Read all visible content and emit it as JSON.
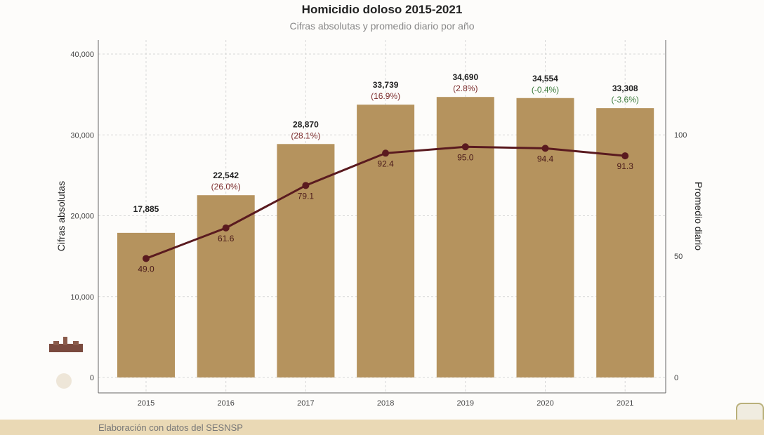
{
  "chart_data": {
    "type": "bar+line",
    "title": "Homicidio doloso 2015-2021",
    "subtitle": "Cifras absolutas y promedio diario por año",
    "ylabel": "Cifras absolutas",
    "y2label": "Promedio diario",
    "categories": [
      "2015",
      "2016",
      "2017",
      "2018",
      "2019",
      "2020",
      "2021"
    ],
    "ylim": [
      0,
      40000
    ],
    "yticks": [
      "0",
      "10,000",
      "20,000",
      "30,000",
      "40,000"
    ],
    "y2ticks": [
      "0",
      "50",
      "100"
    ],
    "grid": true,
    "series": [
      {
        "type": "bar",
        "values": [
          17885,
          22542,
          28870,
          33739,
          34690,
          34554,
          33308
        ],
        "labels": [
          "17,885",
          "22,542",
          "28,870",
          "33,739",
          "34,690",
          "34,554",
          "33,308"
        ],
        "change_labels": [
          "",
          "(26.0%)",
          "(28.1%)",
          "(16.9%)",
          "(2.8%)",
          "(-0.4%)",
          "(-3.6%)"
        ],
        "color": "#b5935e"
      },
      {
        "type": "line",
        "axis": "right",
        "values": [
          49.0,
          61.6,
          79.1,
          92.4,
          95.0,
          94.4,
          91.3
        ],
        "labels": [
          "49.0",
          "61.6",
          "79.1",
          "92.4",
          "95.0",
          "94.4",
          "91.3"
        ],
        "color": "#5a1a1f"
      }
    ],
    "colors": {
      "increase": "#7a2a2a",
      "decrease": "#3b7a3b"
    }
  },
  "footer": {
    "source": "Elaboración con datos del SESNSP"
  }
}
